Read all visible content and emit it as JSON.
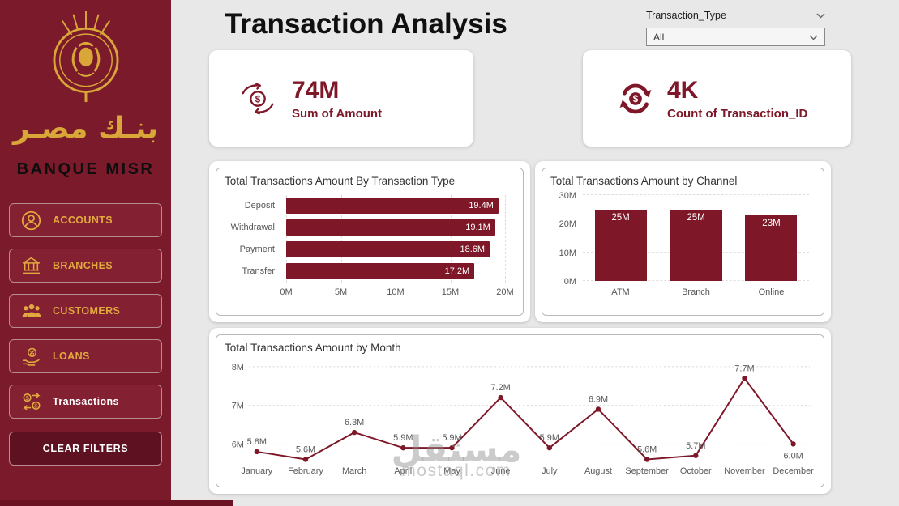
{
  "header": {
    "title": "Transaction Analysis",
    "slicer": {
      "label": "Transaction_Type",
      "value": "All"
    }
  },
  "sidebar": {
    "arabic_name": "بنـك مصـر",
    "english_name": "BANQUE MISR",
    "items": [
      {
        "label": "ACCOUNTS"
      },
      {
        "label": "BRANCHES"
      },
      {
        "label": "CUSTOMERS"
      },
      {
        "label": "LOANS"
      },
      {
        "label": "Transactions"
      }
    ],
    "clear_filters": "CLEAR FILTERS"
  },
  "kpis": [
    {
      "value": "74M",
      "label": "Sum of Amount"
    },
    {
      "value": "4K",
      "label": "Count of Transaction_ID"
    }
  ],
  "chart_data": [
    {
      "type": "bar",
      "orientation": "horizontal",
      "title": "Total Transactions Amount By Transaction Type",
      "categories": [
        "Deposit",
        "Withdrawal",
        "Payment",
        "Transfer"
      ],
      "values": [
        19.4,
        19.1,
        18.6,
        17.2
      ],
      "labels": [
        "19.4M",
        "19.1M",
        "18.6M",
        "17.2M"
      ],
      "x_ticks": [
        "0M",
        "5M",
        "10M",
        "15M",
        "20M"
      ],
      "xlim": [
        0,
        20
      ],
      "grid": true
    },
    {
      "type": "bar",
      "orientation": "vertical",
      "title": "Total Transactions Amount by Channel",
      "categories": [
        "ATM",
        "Branch",
        "Online"
      ],
      "values": [
        25,
        25,
        23
      ],
      "labels": [
        "25M",
        "25M",
        "23M"
      ],
      "y_ticks": [
        "0M",
        "10M",
        "20M",
        "30M"
      ],
      "ylim": [
        0,
        30
      ],
      "grid": true
    },
    {
      "type": "line",
      "title": "Total Transactions Amount by Month",
      "categories": [
        "January",
        "February",
        "March",
        "April",
        "May",
        "June",
        "July",
        "August",
        "September",
        "October",
        "November",
        "December"
      ],
      "values": [
        5.8,
        5.6,
        6.3,
        5.9,
        5.9,
        7.2,
        5.9,
        6.9,
        5.6,
        5.7,
        7.7,
        6.0
      ],
      "labels": [
        "5.8M",
        "5.6M",
        "6.3M",
        "5.9M",
        "5.9M",
        "7.2M",
        "5.9M",
        "6.9M",
        "5.6M",
        "5.7M",
        "7.7M",
        "6.0M"
      ],
      "y_ticks": [
        "8M",
        "7M",
        "6M"
      ],
      "ylim": [
        5.1,
        8.0
      ],
      "grid": true
    }
  ],
  "watermark": {
    "arabic": "مستقل",
    "domain": "mostaql.com"
  },
  "colors": {
    "maroon": "#7E1728",
    "sidebar": "#7A1A2B",
    "gold": "#D9A738",
    "background": "#E8E8E8",
    "card": "#FFFFFF"
  }
}
